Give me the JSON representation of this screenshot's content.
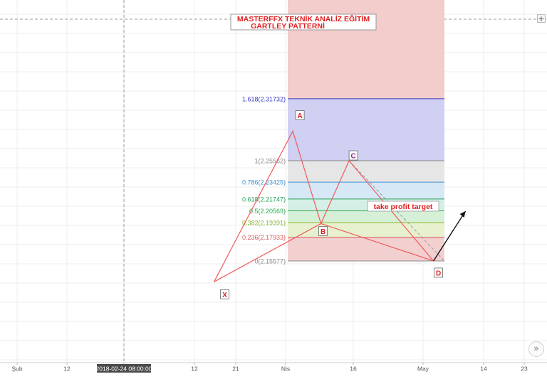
{
  "header": {
    "line1": "MASTERFFX TEKNİK ANALİZ EĞİTİM",
    "line2": "GARTLEY PATTERNİ"
  },
  "controls": {
    "plus_label": "+",
    "scroll_label": "»"
  },
  "chart_data": {
    "type": "line",
    "title": "MASTERFFX TEKNİK ANALİZ EĞİTİM GARTLEY PATTERNİ",
    "x_axis": {
      "ticks": [
        "Şub",
        "12",
        "2018-02-24 08:00:00",
        "12",
        "21",
        "Nis",
        "16",
        "May",
        "14",
        "23"
      ],
      "highlight_tick": "2018-02-24 08:00:00"
    },
    "pattern_points": [
      {
        "label": "X",
        "x": "2018-03-08",
        "y": 2.135
      },
      {
        "label": "A",
        "x": "2018-03-22",
        "y": 2.285
      },
      {
        "label": "B",
        "x": "2018-03-27",
        "y": 2.193
      },
      {
        "label": "C",
        "x": "2018-04-01",
        "y": 2.2556
      },
      {
        "label": "D",
        "x": "2018-04-16",
        "y": 2.1558
      }
    ],
    "fib_levels": [
      {
        "label": "1.618(2.31732)",
        "ratio": 1.618,
        "value": 2.31732,
        "color": "#3b3bc8"
      },
      {
        "label": "1(2.25562)",
        "ratio": 1,
        "value": 2.25562,
        "color": "#888888"
      },
      {
        "label": "0.786(2.23425)",
        "ratio": 0.786,
        "value": 2.23425,
        "color": "#3f8fd0"
      },
      {
        "label": "0.618(2.21747)",
        "ratio": 0.618,
        "value": 2.21747,
        "color": "#27a35a"
      },
      {
        "label": "0.5(2.20569)",
        "ratio": 0.5,
        "value": 2.20569,
        "color": "#2fa84f"
      },
      {
        "label": "0.382(2.19391)",
        "ratio": 0.382,
        "value": 2.19391,
        "color": "#8ab82a"
      },
      {
        "label": "0.236(2.17933)",
        "ratio": 0.236,
        "value": 2.17933,
        "color": "#d95a5a"
      },
      {
        "label": "0(2.15577)",
        "ratio": 0,
        "value": 2.15577,
        "color": "#888888"
      }
    ],
    "annotations": [
      {
        "text": "take profit target",
        "color": "#e02020"
      }
    ],
    "colors": {
      "pattern_line": "#f05a5a",
      "zone_red": "#f3cccc",
      "zone_blue": "#cfd0f2",
      "zone_gray": "#e6e6e6",
      "zone_lightblue": "#d6e8f5",
      "zone_teal": "#d5efe6",
      "zone_green": "#d6f0d8",
      "zone_yellowgreen": "#e8f1cf",
      "zone_pink": "#f3d0d0",
      "label_red": "#e02020"
    },
    "grid": true
  }
}
